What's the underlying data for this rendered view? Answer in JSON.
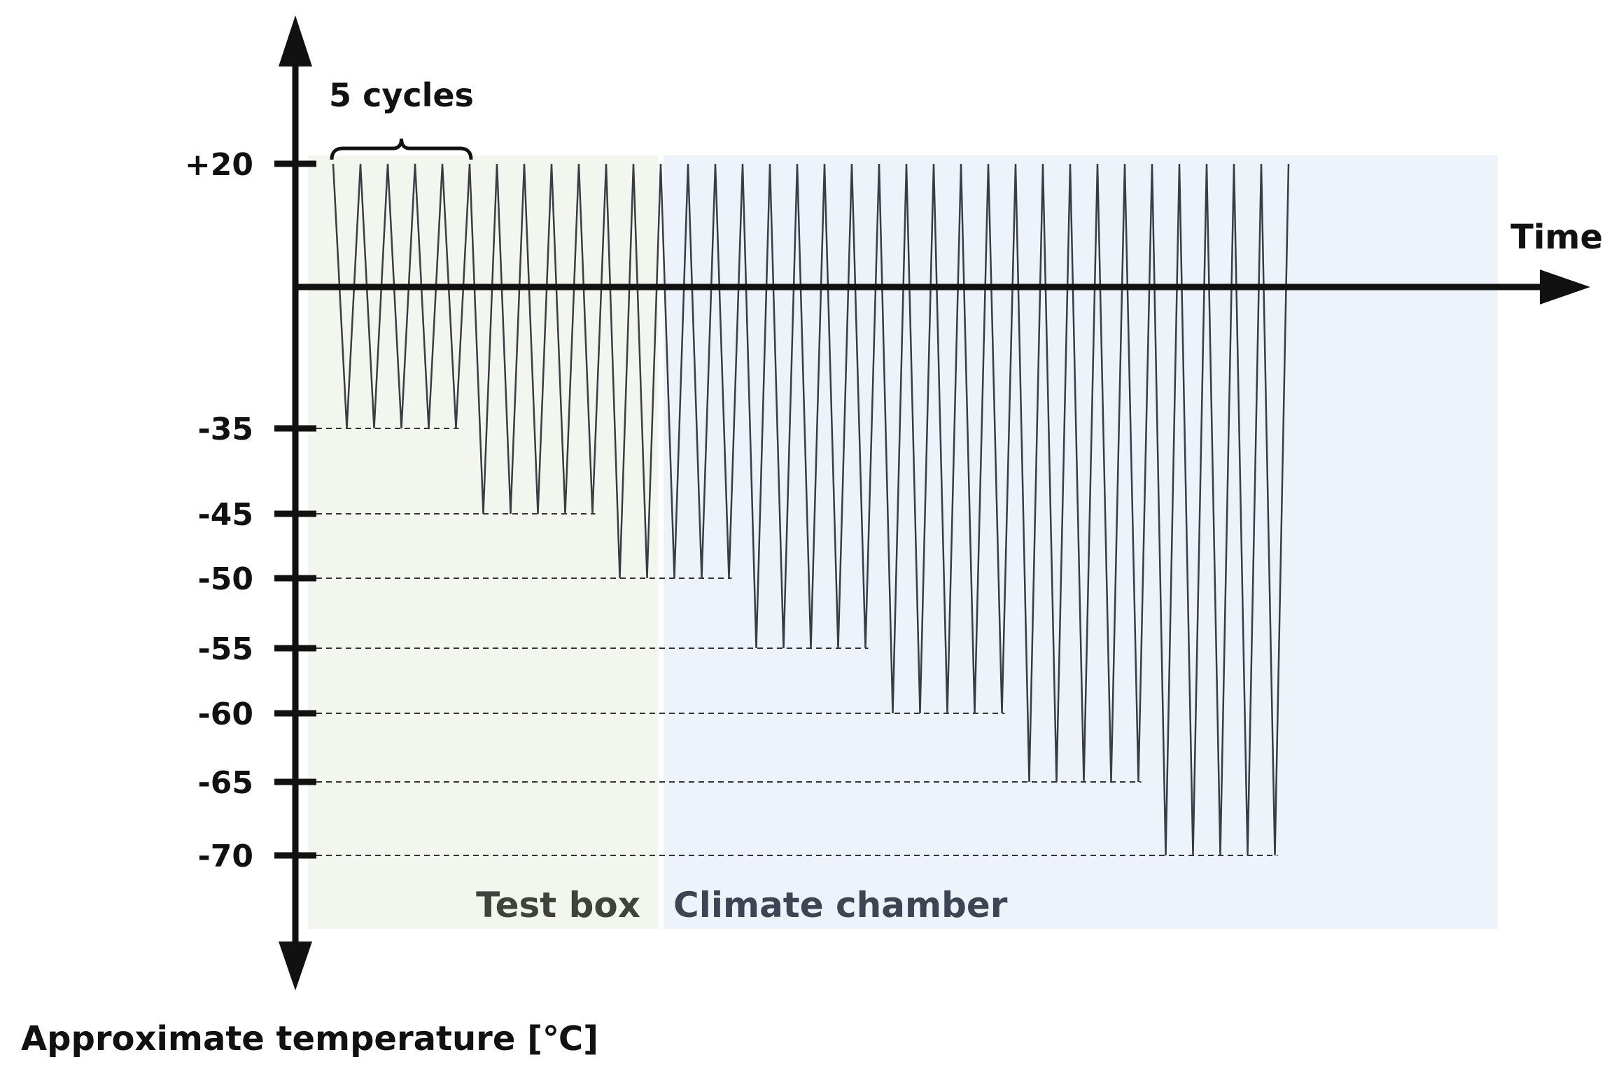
{
  "diagram": {
    "x_axis_label": "Time",
    "y_axis_label": "Approximate temperature [℃]",
    "brace_label": "5 cycles",
    "regions": [
      {
        "label": "Test box",
        "color": "#f3f6ef",
        "text_color": "#3f423d"
      },
      {
        "label": "Climate chamber",
        "color": "#edf2fb",
        "text_color": "#3d4452"
      }
    ],
    "y_ticks": [
      {
        "value": 20,
        "label": "+20"
      },
      {
        "value": -35,
        "label": "-35"
      },
      {
        "value": -45,
        "label": "-45"
      },
      {
        "value": -50,
        "label": "-50"
      },
      {
        "value": -55,
        "label": "-55"
      },
      {
        "value": -60,
        "label": "-60"
      },
      {
        "value": -65,
        "label": "-65"
      },
      {
        "value": -70,
        "label": "-70"
      }
    ],
    "cycle_profile": {
      "upper_temperature": 20,
      "cycles_per_step": 5,
      "steps": [
        {
          "min_temperature": -35,
          "region": "Test box"
        },
        {
          "min_temperature": -45,
          "region": "Test box"
        },
        {
          "min_temperature": -50,
          "region": "Climate chamber"
        },
        {
          "min_temperature": -55,
          "region": "Climate chamber"
        },
        {
          "min_temperature": -60,
          "region": "Climate chamber"
        },
        {
          "min_temperature": -65,
          "region": "Climate chamber"
        },
        {
          "min_temperature": -70,
          "region": "Climate chamber"
        }
      ]
    },
    "colors": {
      "axis": "#111111",
      "signal": "#3a3d42",
      "dashed_guide": "#333333"
    }
  }
}
